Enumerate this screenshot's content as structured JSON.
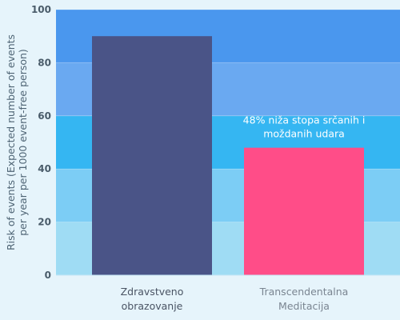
{
  "chart_data": {
    "type": "bar",
    "categories": [
      [
        "Zdravstveno",
        "obrazovanje"
      ],
      [
        "Transcendentalna",
        "Meditacija"
      ]
    ],
    "values": [
      90,
      48
    ],
    "bar_colors": [
      "#4a5487",
      "#ff4d88"
    ],
    "category_label_colors": [
      "#4a5464",
      "#7a8591"
    ],
    "ylabel": [
      "Risk of events (Expected number of events",
      "per year per 1000 event-free person)"
    ],
    "ylim": [
      0,
      100
    ],
    "yticks": [
      0,
      20,
      40,
      60,
      80,
      100
    ],
    "band_colors": [
      "#9fdcf4",
      "#7ccdf5",
      "#35b6f2",
      "#6aa9f1",
      "#4a97ee"
    ],
    "annotation": {
      "bar_index": 1,
      "lines": [
        "48% niža stopa srčanih i",
        "moždanih udara"
      ],
      "color": "#ffffff"
    }
  }
}
